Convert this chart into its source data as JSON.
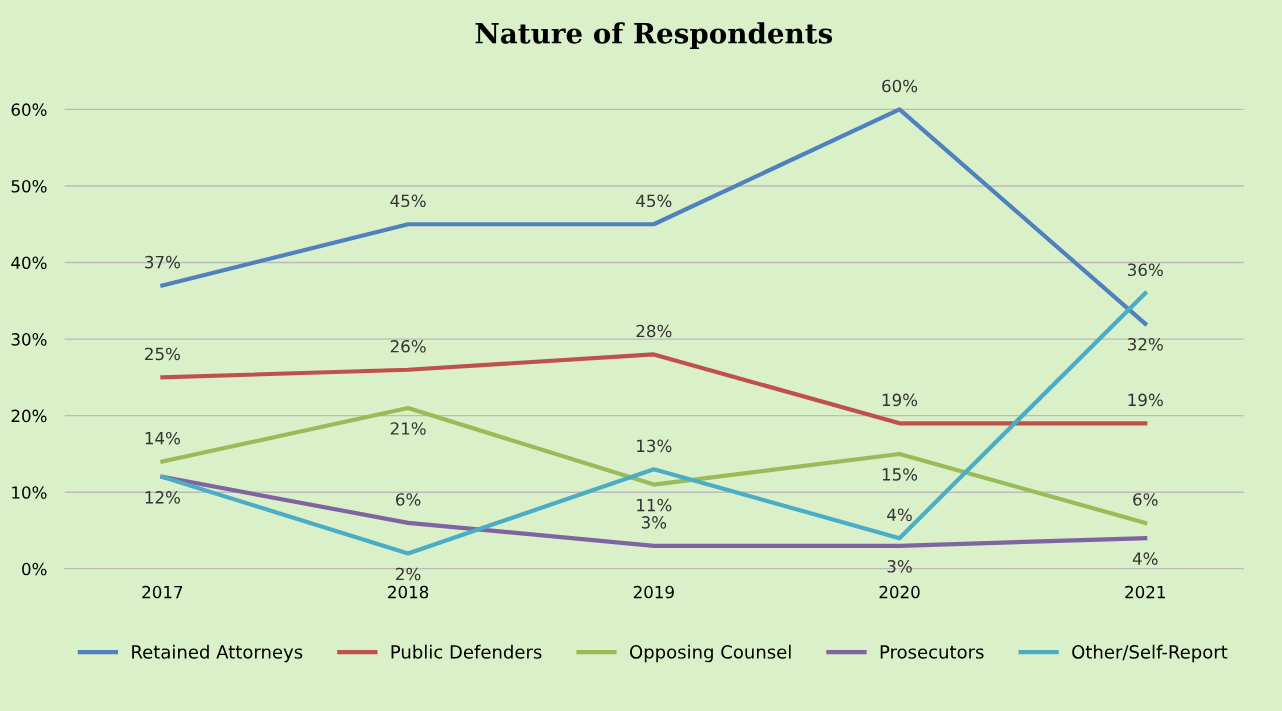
{
  "chart_data": {
    "type": "line",
    "title": "Nature of Respondents",
    "categories": [
      "2017",
      "2018",
      "2019",
      "2020",
      "2021"
    ],
    "ylim": [
      0,
      65
    ],
    "yticks": [
      {
        "value": 0,
        "label": "0%"
      },
      {
        "value": 10,
        "label": "10%"
      },
      {
        "value": 20,
        "label": "20%"
      },
      {
        "value": 30,
        "label": "30%"
      },
      {
        "value": 40,
        "label": "40%"
      },
      {
        "value": 50,
        "label": "50%"
      },
      {
        "value": 60,
        "label": "60%"
      }
    ],
    "grid": "y",
    "legend": "bottom",
    "marker": "none",
    "line_style": "solid",
    "series": [
      {
        "name": "Retained Attorneys",
        "color": "#4f81bd",
        "values": [
          37,
          45,
          45,
          60,
          32
        ],
        "value_labels": [
          "37%",
          "45%",
          "45%",
          "60%",
          "32%"
        ]
      },
      {
        "name": "Public Defenders",
        "color": "#c0504d",
        "values": [
          25,
          26,
          28,
          19,
          19
        ],
        "value_labels": [
          "25%",
          "26%",
          "28%",
          "19%",
          "19%"
        ]
      },
      {
        "name": "Opposing Counsel",
        "color": "#9bbb59",
        "values": [
          14,
          21,
          11,
          15,
          6
        ],
        "value_labels": [
          "14%",
          "21%",
          "11%",
          "15%",
          "6%"
        ]
      },
      {
        "name": "Prosecutors",
        "color": "#8064a2",
        "values": [
          12,
          6,
          3,
          3,
          4
        ],
        "value_labels": [
          null,
          "6%",
          "3%",
          "3%",
          "4%"
        ]
      },
      {
        "name": "Other/Self-Report",
        "color": "#4bacc6",
        "values": [
          12,
          2,
          13,
          4,
          36
        ],
        "value_labels": [
          "12%",
          "2%",
          "13%",
          "4%",
          "36%"
        ]
      }
    ]
  }
}
